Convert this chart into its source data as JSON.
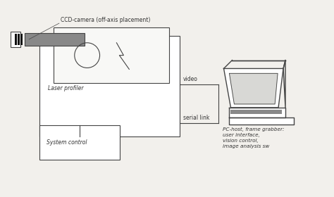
{
  "bg_color": "#f2f0ec",
  "line_color": "#444444",
  "gray_fill": "#888888",
  "dark_gray": "#555555",
  "white": "#ffffff",
  "text_color": "#333333",
  "labels": {
    "ccd_camera": "CCD-camera (off-axis placement)",
    "laser_profiler": "Laser profiler",
    "system_control": "System control",
    "video": "video",
    "serial_link": "serial link",
    "pc_host": "PC-host, frame grabber:\nuser interface,\nvision control,\nimage analysis sw"
  },
  "fontsize": 5.5
}
